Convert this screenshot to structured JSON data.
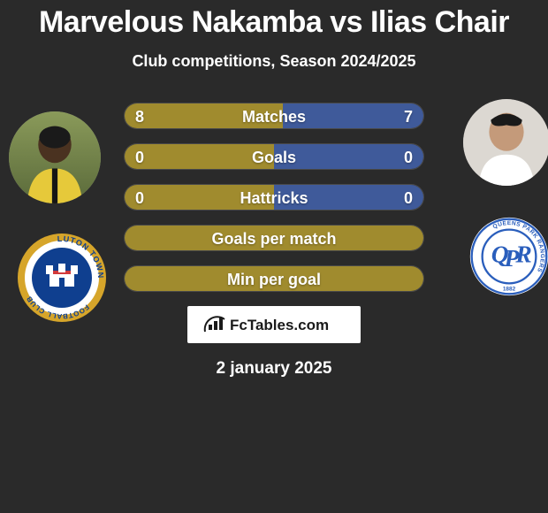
{
  "title": "Marvelous Nakamba vs Ilias Chair",
  "subtitle": "Club competitions, Season 2024/2025",
  "date": "2 january 2025",
  "theme": {
    "background": "#2a2a2a",
    "text": "#ffffff",
    "bar_border": "rgba(255,255,255,0.15)"
  },
  "player_left": {
    "name": "Marvelous Nakamba",
    "club": "Luton Town",
    "club_color_primary": "#0f3f8f",
    "club_color_secondary": "#d6a52a",
    "avatar_jersey_color": "#e6c93a",
    "avatar_jersey_stripe": "#151515"
  },
  "player_right": {
    "name": "Ilias Chair",
    "club": "Queens Park Rangers",
    "club_color_primary": "#2a5ebc",
    "club_color_secondary": "#ffffff",
    "avatar_jersey_color": "#ffffff"
  },
  "bars": [
    {
      "label": "Matches",
      "left_value": "8",
      "right_value": "7",
      "left_color": "#a08b2e",
      "right_color": "#3f5a9a",
      "left_pct": 53,
      "right_pct": 47,
      "show_values": true
    },
    {
      "label": "Goals",
      "left_value": "0",
      "right_value": "0",
      "left_color": "#a08b2e",
      "right_color": "#3f5a9a",
      "left_pct": 50,
      "right_pct": 50,
      "show_values": true
    },
    {
      "label": "Hattricks",
      "left_value": "0",
      "right_value": "0",
      "left_color": "#a08b2e",
      "right_color": "#3f5a9a",
      "left_pct": 50,
      "right_pct": 50,
      "show_values": true
    },
    {
      "label": "Goals per match",
      "left_value": "",
      "right_value": "",
      "left_color": "#a08b2e",
      "right_color": "#a08b2e",
      "left_pct": 100,
      "right_pct": 0,
      "show_values": false
    },
    {
      "label": "Min per goal",
      "left_value": "",
      "right_value": "",
      "left_color": "#a08b2e",
      "right_color": "#a08b2e",
      "left_pct": 100,
      "right_pct": 0,
      "show_values": false
    }
  ],
  "footer_brand": "FcTables.com"
}
